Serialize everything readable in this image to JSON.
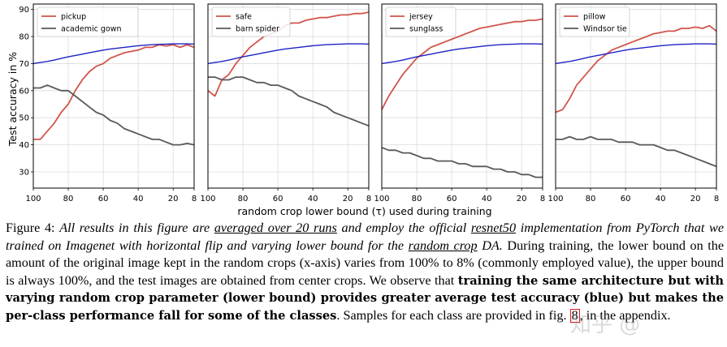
{
  "figure": {
    "shared_xlabel": "random crop lower bound (τ) used during training",
    "shared_ylabel": "Test accuracy in %"
  },
  "chart_data": [
    {
      "type": "line",
      "title": "",
      "xlabel": "",
      "ylabel": "Test accuracy in %",
      "xlim": [
        100,
        8
      ],
      "ylim": [
        24,
        92
      ],
      "xticks": [
        100,
        80,
        60,
        40,
        20,
        8
      ],
      "yticks": [
        30,
        40,
        50,
        60,
        70,
        80,
        90
      ],
      "grid": true,
      "legend": "top-left",
      "x": [
        100,
        96,
        92,
        88,
        84,
        80,
        76,
        72,
        68,
        64,
        60,
        56,
        52,
        48,
        44,
        40,
        36,
        32,
        28,
        24,
        20,
        16,
        12,
        8
      ],
      "series": [
        {
          "name": "pickup",
          "color": "#d1554b",
          "values": [
            42,
            42,
            45,
            48,
            52,
            55,
            60,
            64,
            67,
            69,
            70,
            72,
            73,
            74,
            74.5,
            75,
            76,
            76,
            77,
            76.5,
            77,
            76,
            77,
            76
          ]
        },
        {
          "name": "academic gown",
          "color": "#595959",
          "values": [
            61,
            61,
            62,
            61,
            60,
            60,
            58,
            56,
            54,
            52,
            51,
            49,
            48,
            46,
            45,
            44,
            43,
            42,
            42,
            41,
            40,
            40,
            40.5,
            40
          ]
        },
        {
          "name": "",
          "color": "#1f22c4",
          "values": [
            70,
            70.4,
            70.8,
            71.3,
            71.9,
            72.5,
            73,
            73.5,
            74,
            74.5,
            75,
            75.4,
            75.7,
            76,
            76.3,
            76.6,
            76.8,
            77,
            77.1,
            77.2,
            77.3,
            77.3,
            77.3,
            77.2
          ]
        }
      ]
    },
    {
      "type": "line",
      "title": "",
      "xlabel": "",
      "ylabel": "",
      "xlim": [
        100,
        8
      ],
      "ylim": [
        24,
        92
      ],
      "xticks": [
        100,
        80,
        60,
        40,
        20,
        8
      ],
      "yticks": [
        30,
        40,
        50,
        60,
        70,
        80,
        90
      ],
      "grid": true,
      "legend": "top-left",
      "x": [
        100,
        96,
        92,
        88,
        84,
        80,
        76,
        72,
        68,
        64,
        60,
        56,
        52,
        48,
        44,
        40,
        36,
        32,
        28,
        24,
        20,
        16,
        12,
        8
      ],
      "series": [
        {
          "name": "safe",
          "color": "#d1554b",
          "values": [
            60,
            58,
            64,
            66,
            70,
            73,
            76,
            78,
            80,
            81,
            82,
            84,
            85,
            85,
            86,
            86.5,
            87,
            87,
            87.5,
            88,
            88,
            88.5,
            88.5,
            89
          ]
        },
        {
          "name": "barn spider",
          "color": "#595959",
          "values": [
            65,
            65,
            64,
            64,
            65,
            65,
            64,
            63,
            63,
            62,
            62,
            61,
            60,
            58,
            57,
            56,
            55,
            54,
            52,
            51,
            50,
            49,
            48,
            47
          ]
        },
        {
          "name": "",
          "color": "#1f22c4",
          "values": [
            70,
            70.4,
            70.8,
            71.3,
            71.9,
            72.5,
            73,
            73.5,
            74,
            74.5,
            75,
            75.4,
            75.7,
            76,
            76.3,
            76.6,
            76.8,
            77,
            77.1,
            77.2,
            77.3,
            77.3,
            77.3,
            77.2
          ]
        }
      ]
    },
    {
      "type": "line",
      "title": "",
      "xlabel": "",
      "ylabel": "",
      "xlim": [
        100,
        8
      ],
      "ylim": [
        24,
        92
      ],
      "xticks": [
        100,
        80,
        60,
        40,
        20,
        8
      ],
      "yticks": [
        30,
        40,
        50,
        60,
        70,
        80,
        90
      ],
      "grid": true,
      "legend": "top-left",
      "x": [
        100,
        96,
        92,
        88,
        84,
        80,
        76,
        72,
        68,
        64,
        60,
        56,
        52,
        48,
        44,
        40,
        36,
        32,
        28,
        24,
        20,
        16,
        12,
        8
      ],
      "series": [
        {
          "name": "jersey",
          "color": "#d1554b",
          "values": [
            53,
            58,
            62,
            66,
            69,
            72,
            74,
            76,
            77,
            78,
            79,
            80,
            81,
            82,
            83,
            83.5,
            84,
            84.5,
            85,
            85.5,
            85.5,
            86,
            86,
            86.5
          ]
        },
        {
          "name": "sunglass",
          "color": "#595959",
          "values": [
            39,
            38,
            38,
            37,
            37,
            36,
            35,
            35,
            34,
            34,
            34,
            33,
            33,
            32,
            32,
            32,
            31,
            31,
            30,
            30,
            29,
            29,
            28,
            28
          ]
        },
        {
          "name": "",
          "color": "#1f22c4",
          "values": [
            70,
            70.4,
            70.8,
            71.3,
            71.9,
            72.5,
            73,
            73.5,
            74,
            74.5,
            75,
            75.4,
            75.7,
            76,
            76.3,
            76.6,
            76.8,
            77,
            77.1,
            77.2,
            77.3,
            77.3,
            77.3,
            77.2
          ]
        }
      ]
    },
    {
      "type": "line",
      "title": "",
      "xlabel": "",
      "ylabel": "",
      "xlim": [
        100,
        8
      ],
      "ylim": [
        24,
        92
      ],
      "xticks": [
        100,
        80,
        60,
        40,
        20,
        8
      ],
      "yticks": [
        30,
        40,
        50,
        60,
        70,
        80,
        90
      ],
      "grid": true,
      "legend": "top-left",
      "x": [
        100,
        96,
        92,
        88,
        84,
        80,
        76,
        72,
        68,
        64,
        60,
        56,
        52,
        48,
        44,
        40,
        36,
        32,
        28,
        24,
        20,
        16,
        12,
        8
      ],
      "series": [
        {
          "name": "pillow",
          "color": "#d1554b",
          "values": [
            52,
            53,
            57,
            62,
            65,
            68,
            71,
            73,
            75,
            76,
            77,
            78,
            79,
            80,
            81,
            81.5,
            82,
            82,
            83,
            83,
            83.5,
            83,
            84,
            82
          ]
        },
        {
          "name": "Windsor tie",
          "color": "#595959",
          "values": [
            42,
            42,
            43,
            42,
            42,
            43,
            42,
            42,
            42,
            41,
            41,
            41,
            40,
            40,
            40,
            39,
            38,
            38,
            37,
            36,
            35,
            34,
            33,
            32
          ]
        },
        {
          "name": "",
          "color": "#1f22c4",
          "values": [
            70,
            70.4,
            70.8,
            71.3,
            71.9,
            72.5,
            73,
            73.5,
            74,
            74.5,
            75,
            75.4,
            75.7,
            76,
            76.3,
            76.6,
            76.8,
            77,
            77.1,
            77.2,
            77.3,
            77.3,
            77.3,
            77.2
          ]
        }
      ]
    }
  ],
  "caption": {
    "label": "Figure 4:",
    "s1": "All results in this figure are",
    "s2": "averaged over 20 runs",
    "s3": "and employ the official",
    "s4": "resnet50",
    "s5": "implementation from PyTorch that we trained on Imagenet with horizontal flip",
    "s6": "and varying lower bound for the",
    "s7": "random crop",
    "s8": "DA.",
    "s9": "During training, the lower bound on the amount of the original image kept in the random crops (x-axis) varies from 100% to 8% (commonly employed value), the upper bound is always 100%, and the test images are obtained from center crops. We observe that",
    "s10": "training the same architecture but with varying random crop parameter (lower bound) provides greater average test accuracy (blue) but makes the per-class performance fall for some of the classes",
    "s11": ". Samples for each class are provided in fig.",
    "s12": "8",
    "s13": ", in the appendix."
  }
}
